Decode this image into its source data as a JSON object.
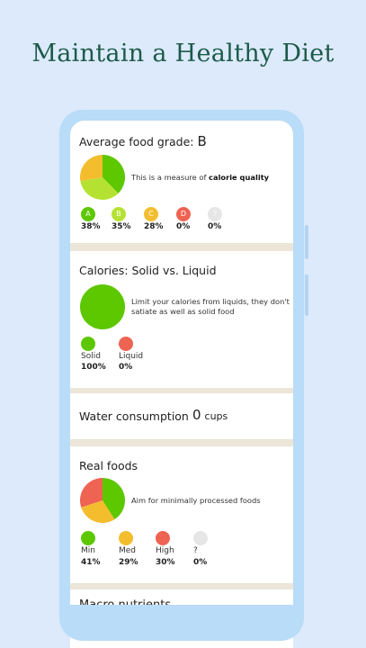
{
  "headline": "Maintain a Healthy Diet",
  "colors": {
    "green": "#5dc700",
    "lightgreen": "#b5e232",
    "yellow": "#f3bd2e",
    "red": "#ef6352",
    "grey": "#e6e6e6"
  },
  "grade_card": {
    "title": "Average food grade:",
    "grade": "B",
    "note_prefix": "This is a measure of ",
    "note_bold": "calorie quality",
    "items": [
      {
        "label": "A",
        "pct": "38%"
      },
      {
        "label": "B",
        "pct": "35%"
      },
      {
        "label": "C",
        "pct": "28%"
      },
      {
        "label": "D",
        "pct": "0%"
      },
      {
        "label": "?",
        "pct": "0%"
      }
    ]
  },
  "liquid_card": {
    "title": "Calories: Solid vs. Liquid",
    "note": "Limit your calories from liquids, they don't satiate as well as solid food",
    "items": [
      {
        "label": "Solid",
        "pct": "100%"
      },
      {
        "label": "Liquid",
        "pct": "0%"
      }
    ]
  },
  "water_card": {
    "title": "Water consumption",
    "value": "0",
    "unit": "cups"
  },
  "real_card": {
    "title": "Real foods",
    "note": "Aim for minimally processed foods",
    "items": [
      {
        "label": "Min",
        "pct": "41%"
      },
      {
        "label": "Med",
        "pct": "29%"
      },
      {
        "label": "High",
        "pct": "30%"
      },
      {
        "label": "?",
        "pct": "0%"
      }
    ]
  },
  "next_card": {
    "title": "Macro nutrients"
  },
  "chart_data": [
    {
      "type": "pie",
      "title": "Average food grade",
      "categories": [
        "A",
        "B",
        "C",
        "D",
        "?"
      ],
      "values": [
        38,
        35,
        28,
        0,
        0
      ]
    },
    {
      "type": "pie",
      "title": "Calories: Solid vs. Liquid",
      "categories": [
        "Solid",
        "Liquid"
      ],
      "values": [
        100,
        0
      ]
    },
    {
      "type": "pie",
      "title": "Real foods",
      "categories": [
        "Min",
        "Med",
        "High",
        "?"
      ],
      "values": [
        41,
        29,
        30,
        0
      ]
    }
  ]
}
